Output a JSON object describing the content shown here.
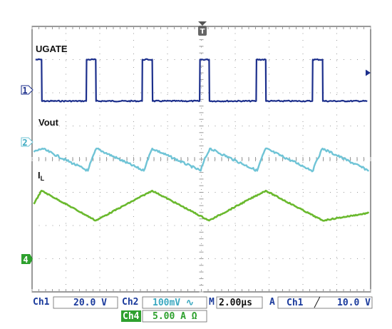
{
  "chart_data": {
    "type": "line",
    "x_unit": "divisions (2.00 µs/div)",
    "x_range_div": [
      0,
      10
    ],
    "y_range_div": [
      -4,
      4
    ],
    "grid": true,
    "trigger_marker": "T",
    "series": [
      {
        "name": "UGATE",
        "channel": "1",
        "color": "#1c2f8c",
        "x_div": [
          0.1,
          0.28,
          0.29,
          1.6,
          1.61,
          1.88,
          1.89,
          3.25,
          3.26,
          3.55,
          3.56,
          4.95,
          4.96,
          5.23,
          5.24,
          6.62,
          6.63,
          6.9,
          6.91,
          8.28,
          8.29,
          8.58,
          8.59,
          9.9
        ],
        "y_div": [
          3.0,
          3.0,
          1.75,
          1.75,
          3.0,
          3.0,
          1.75,
          1.75,
          3.0,
          3.0,
          1.75,
          1.75,
          3.0,
          3.0,
          1.75,
          1.75,
          3.0,
          3.0,
          1.75,
          1.75,
          3.0,
          3.0,
          1.75,
          1.75
        ]
      },
      {
        "name": "Vout",
        "channel": "2",
        "color": "#6fc4d6",
        "x_div": [
          0.05,
          0.3,
          1.65,
          1.75,
          1.9,
          3.3,
          3.4,
          3.55,
          4.98,
          5.08,
          5.25,
          6.65,
          6.75,
          6.9,
          8.3,
          8.4,
          8.58,
          9.95
        ],
        "y_div": [
          0.22,
          0.32,
          -0.35,
          -0.05,
          0.32,
          -0.35,
          -0.05,
          0.32,
          -0.35,
          -0.05,
          0.32,
          -0.35,
          -0.05,
          0.32,
          -0.35,
          -0.05,
          0.32,
          -0.35
        ]
      },
      {
        "name": "I_L",
        "channel": "4",
        "color": "#6ab92e",
        "x_div": [
          0.05,
          0.28,
          1.88,
          3.55,
          5.23,
          6.9,
          8.58,
          9.95
        ],
        "y_div": [
          -1.35,
          -0.95,
          -1.85,
          -0.95,
          -1.85,
          -0.95,
          -1.85,
          -1.62
        ]
      }
    ]
  },
  "labels": {
    "ugate": "UGATE",
    "vout": "Vout",
    "il_main": "I",
    "il_sub": "L",
    "trigger": "T"
  },
  "markers": {
    "ch1": "1",
    "ch2": "2",
    "ch4": "4"
  },
  "status": {
    "ch1_label": "Ch1",
    "ch1_value": "20.0 V",
    "ch2_label": "Ch2",
    "ch2_value": "100mV ∿",
    "timebase_label": "M",
    "timebase_value": "2.00µs",
    "acq_mode": "A",
    "trig_source": "Ch1",
    "trig_slope": "╱",
    "trig_level": "10.0 V",
    "ch4_label": "Ch4",
    "ch4_value": "5.00 A Ω"
  },
  "colors": {
    "ch1": "#1c2f8c",
    "ch2": "#6fc4d6",
    "ch4": "#6ab92e",
    "ch4_tag": "#2ea02e",
    "grid": "#9a9a9a",
    "bar_text": "#1a3a9c"
  }
}
